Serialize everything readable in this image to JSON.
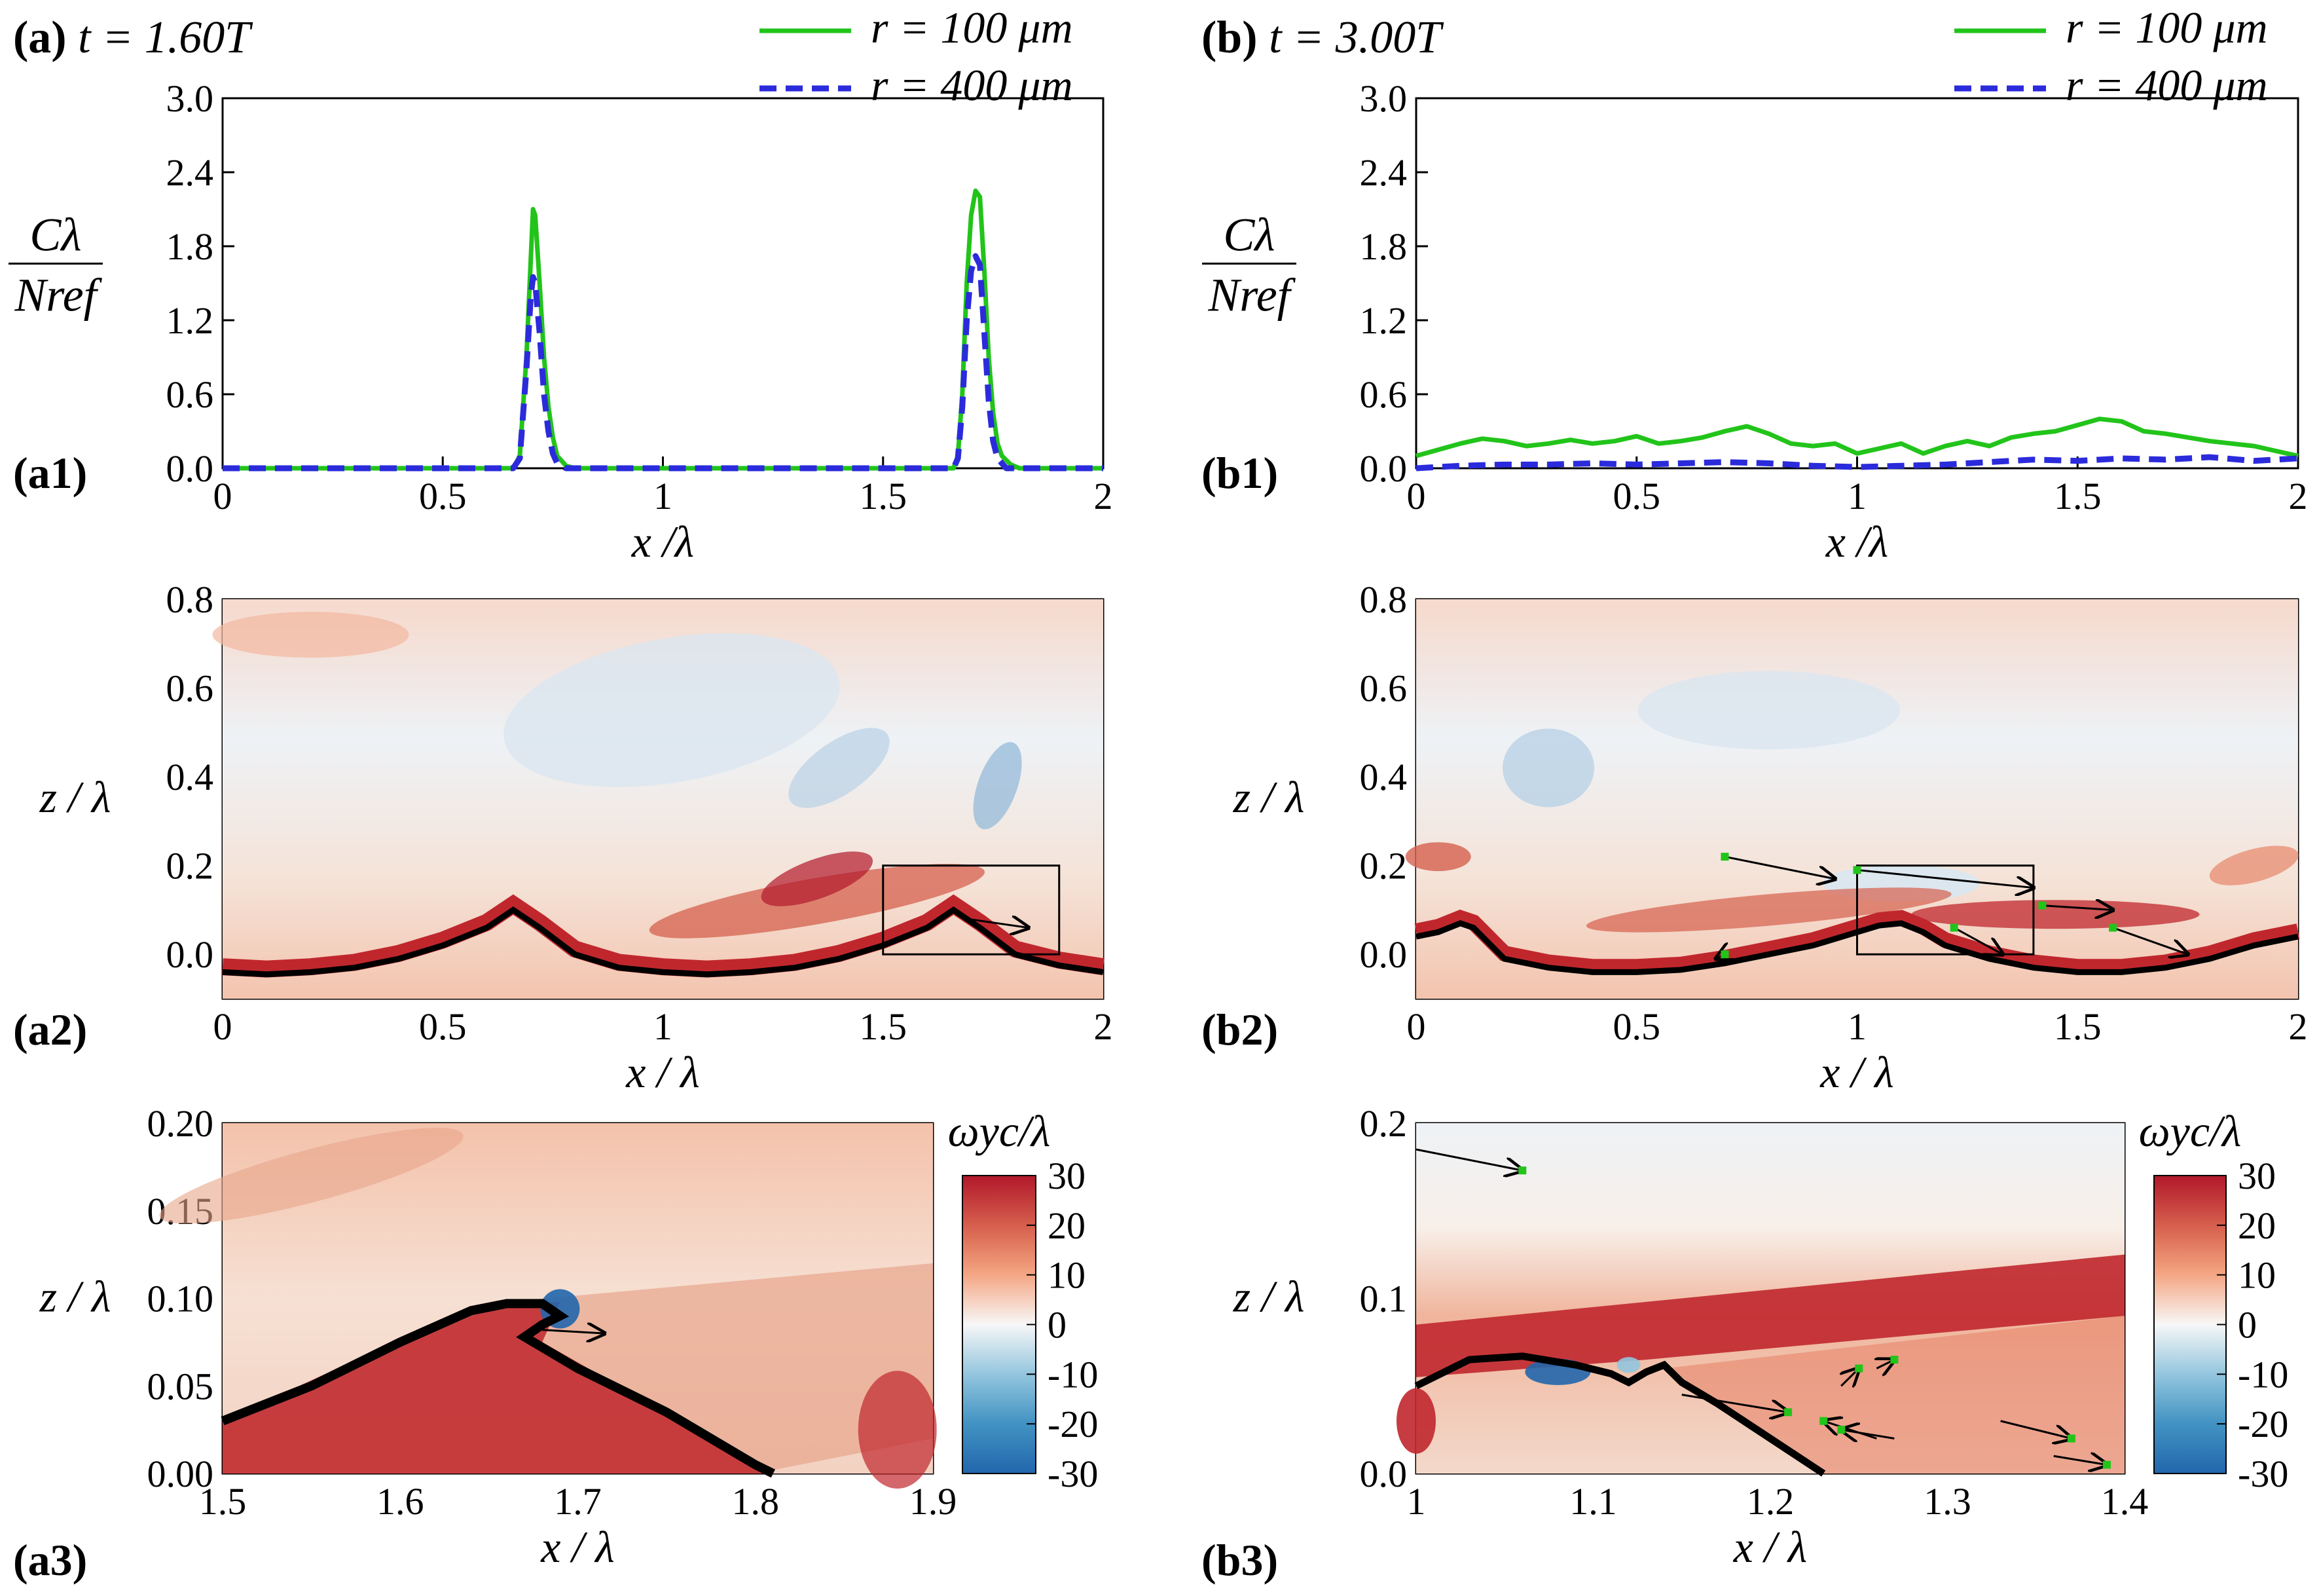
{
  "figure": {
    "colors": {
      "green": "#22c41a",
      "blue": "#2b2bdc",
      "neg": "#2166ac",
      "pos": "#b2182b",
      "axis": "#000000"
    },
    "colorbar": {
      "label": "ωyc/λ",
      "ticks": [
        "30",
        "20",
        "10",
        "0",
        "-10",
        "-20",
        "-30"
      ]
    }
  },
  "chart_data": [
    {
      "id": "a1",
      "type": "line",
      "panel_label": "(a1)",
      "header": {
        "letter": "(a)",
        "time": "t = 1.60T"
      },
      "title": "(a) t = 1.60T",
      "xlabel": "x /λ",
      "ylabel": "Cλ / Nref",
      "xlim": [
        0,
        2
      ],
      "ylim": [
        0,
        3.0
      ],
      "xticks": [
        "0",
        "0.5",
        "1",
        "1.5",
        "2"
      ],
      "yticks": [
        "0.0",
        "0.6",
        "1.2",
        "1.8",
        "2.4",
        "3.0"
      ],
      "legend": [
        {
          "label": "r = 100 μm",
          "style": "solid-green"
        },
        {
          "label": "r = 400 μm",
          "style": "dashed-blue"
        }
      ],
      "series": [
        {
          "name": "r = 100 μm",
          "x": [
            0,
            0.66,
            0.675,
            0.69,
            0.7,
            0.705,
            0.71,
            0.72,
            0.73,
            0.74,
            0.75,
            0.76,
            0.78,
            0.8,
            1.66,
            1.67,
            1.68,
            1.69,
            1.7,
            1.71,
            1.72,
            1.73,
            1.74,
            1.75,
            1.76,
            1.77,
            1.79,
            1.81,
            2
          ],
          "y": [
            0,
            0,
            0.1,
            0.9,
            1.7,
            2.1,
            2.05,
            1.5,
            0.9,
            0.5,
            0.25,
            0.1,
            0.02,
            0,
            0,
            0.1,
            0.6,
            1.5,
            2.05,
            2.25,
            2.2,
            1.6,
            0.9,
            0.45,
            0.2,
            0.1,
            0.03,
            0,
            0
          ]
        },
        {
          "name": "r = 400 μm",
          "x": [
            0,
            0.66,
            0.675,
            0.69,
            0.7,
            0.705,
            0.71,
            0.72,
            0.73,
            0.74,
            0.75,
            0.76,
            0.78,
            1.66,
            1.67,
            1.68,
            1.69,
            1.7,
            1.71,
            1.72,
            1.73,
            1.74,
            1.75,
            1.76,
            1.78,
            2
          ],
          "y": [
            0,
            0,
            0.08,
            0.8,
            1.4,
            1.55,
            1.5,
            1.1,
            0.6,
            0.3,
            0.12,
            0.04,
            0,
            0,
            0.08,
            0.5,
            1.2,
            1.6,
            1.72,
            1.65,
            1.1,
            0.55,
            0.22,
            0.08,
            0,
            0
          ]
        }
      ]
    },
    {
      "id": "b1",
      "type": "line",
      "panel_label": "(b1)",
      "header": {
        "letter": "(b)",
        "time": "t = 3.00T"
      },
      "title": "(b) t = 3.00T",
      "xlabel": "x /λ",
      "ylabel": "Cλ / Nref",
      "xlim": [
        0,
        2
      ],
      "ylim": [
        0,
        3.0
      ],
      "xticks": [
        "0",
        "0.5",
        "1",
        "1.5",
        "2"
      ],
      "yticks": [
        "0.0",
        "0.6",
        "1.2",
        "1.8",
        "2.4",
        "3.0"
      ],
      "legend": [
        {
          "label": "r = 100 μm",
          "style": "solid-green"
        },
        {
          "label": "r = 400 μm",
          "style": "dashed-blue"
        }
      ],
      "series": [
        {
          "name": "r = 100 μm",
          "x": [
            0,
            0.05,
            0.1,
            0.15,
            0.2,
            0.25,
            0.3,
            0.35,
            0.4,
            0.45,
            0.5,
            0.55,
            0.6,
            0.65,
            0.7,
            0.75,
            0.8,
            0.85,
            0.9,
            0.95,
            1.0,
            1.05,
            1.1,
            1.15,
            1.2,
            1.25,
            1.3,
            1.35,
            1.4,
            1.45,
            1.5,
            1.55,
            1.6,
            1.65,
            1.7,
            1.75,
            1.8,
            1.85,
            1.9,
            1.95,
            2.0
          ],
          "y": [
            0.1,
            0.15,
            0.2,
            0.24,
            0.22,
            0.18,
            0.2,
            0.23,
            0.2,
            0.22,
            0.26,
            0.2,
            0.22,
            0.25,
            0.3,
            0.34,
            0.28,
            0.2,
            0.18,
            0.2,
            0.12,
            0.16,
            0.2,
            0.12,
            0.18,
            0.22,
            0.18,
            0.25,
            0.28,
            0.3,
            0.35,
            0.4,
            0.38,
            0.3,
            0.28,
            0.25,
            0.22,
            0.2,
            0.18,
            0.14,
            0.1
          ]
        },
        {
          "name": "r = 400 μm",
          "x": [
            0,
            0.1,
            0.2,
            0.3,
            0.4,
            0.5,
            0.6,
            0.7,
            0.8,
            0.9,
            1.0,
            1.1,
            1.2,
            1.3,
            1.4,
            1.5,
            1.6,
            1.7,
            1.8,
            1.9,
            2.0
          ],
          "y": [
            0,
            0.02,
            0.03,
            0.03,
            0.04,
            0.03,
            0.04,
            0.05,
            0.04,
            0.02,
            0.01,
            0.02,
            0.03,
            0.05,
            0.07,
            0.06,
            0.08,
            0.07,
            0.09,
            0.06,
            0.08
          ]
        }
      ]
    },
    {
      "id": "a2",
      "type": "heatmap",
      "panel_label": "(a2)",
      "xlabel": "x / λ",
      "ylabel": "z / λ",
      "xlim": [
        0,
        2
      ],
      "ylim": [
        -0.1,
        0.8
      ],
      "xticks": [
        "0",
        "0.5",
        "1",
        "1.5",
        "2"
      ],
      "yticks": [
        "0.0",
        "0.2",
        "0.4",
        "0.6",
        "0.8"
      ],
      "zoom_box": {
        "x": [
          1.5,
          1.9
        ],
        "z": [
          0.0,
          0.2
        ]
      },
      "surface_crests": [
        0.66,
        1.66
      ]
    },
    {
      "id": "b2",
      "type": "heatmap",
      "panel_label": "(b2)",
      "xlabel": "x / λ",
      "ylabel": "z / λ",
      "xlim": [
        0,
        2
      ],
      "ylim": [
        -0.1,
        0.8
      ],
      "xticks": [
        "0",
        "0.5",
        "1",
        "1.5",
        "2"
      ],
      "yticks": [
        "0.0",
        "0.2",
        "0.4",
        "0.6",
        "0.8"
      ],
      "zoom_box": {
        "x": [
          1.0,
          1.4
        ],
        "z": [
          0.0,
          0.2
        ]
      },
      "surface_crests": [
        0.12,
        1.1
      ]
    },
    {
      "id": "a3",
      "type": "heatmap",
      "panel_label": "(a3)",
      "xlabel": "x / λ",
      "ylabel": "z / λ",
      "xlim": [
        1.5,
        1.9
      ],
      "ylim": [
        0,
        0.2
      ],
      "xticks": [
        "1.5",
        "1.6",
        "1.7",
        "1.8",
        "1.9"
      ],
      "yticks": [
        "0.00",
        "0.05",
        "0.10",
        "0.15",
        "0.20"
      ],
      "colorbar": {
        "label": "ωyc/λ",
        "range": [
          -30,
          30
        ]
      }
    },
    {
      "id": "b3",
      "type": "heatmap",
      "panel_label": "(b3)",
      "xlabel": "x / λ",
      "ylabel": "z / λ",
      "xlim": [
        1.0,
        1.4
      ],
      "ylim": [
        0,
        0.2
      ],
      "xticks": [
        "1",
        "1.1",
        "1.2",
        "1.3",
        "1.4"
      ],
      "yticks": [
        "0.0",
        "0.1",
        "0.2"
      ],
      "colorbar": {
        "label": "ωyc/λ",
        "range": [
          -30,
          30
        ]
      }
    }
  ]
}
